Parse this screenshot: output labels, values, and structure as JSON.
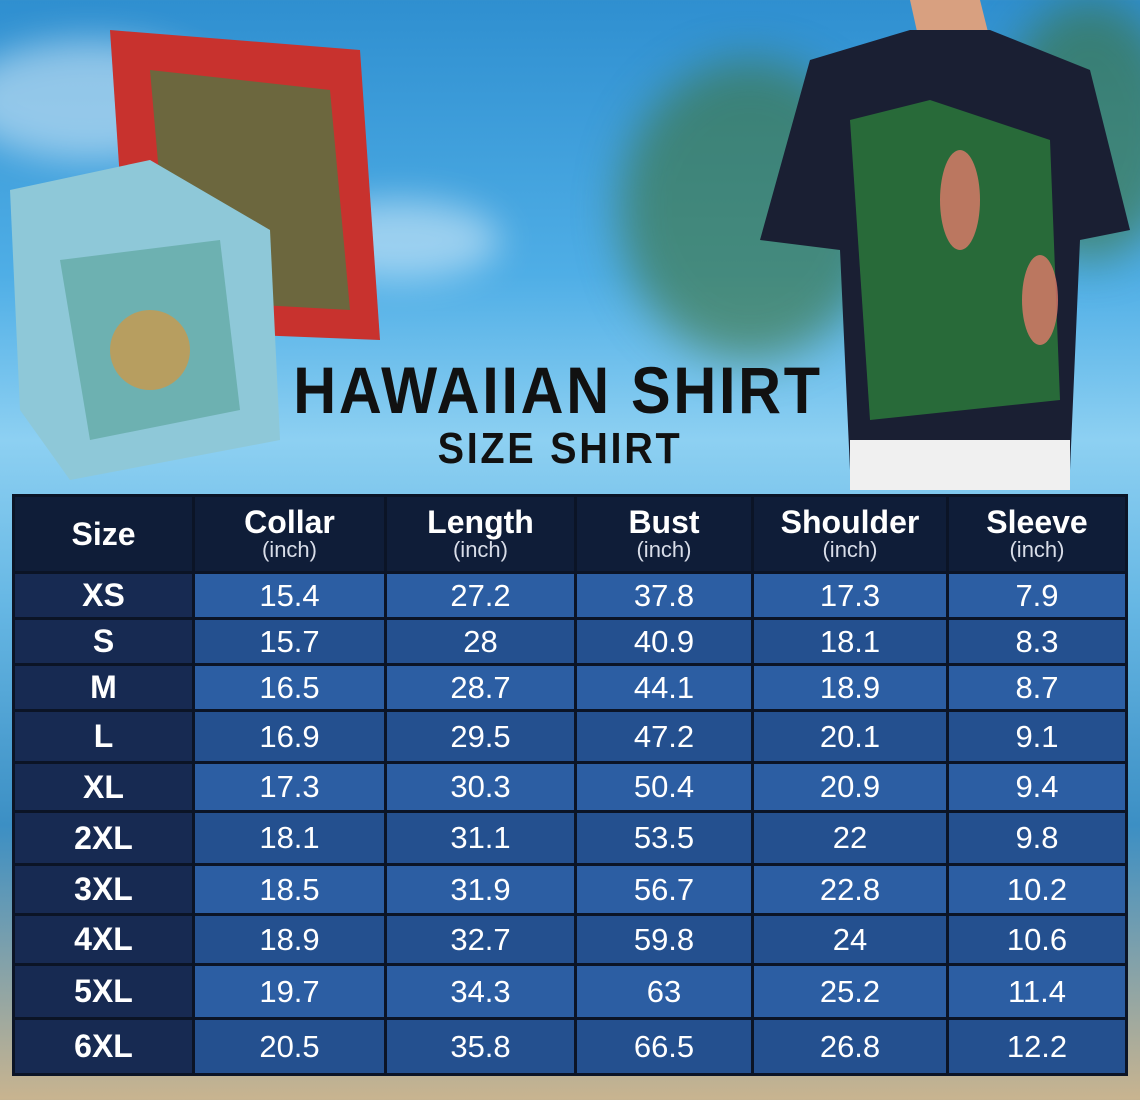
{
  "title": "HAWAIIAN SHIRT",
  "subtitle": "SIZE SHIRT",
  "colors": {
    "header_bg": "#0f1d38",
    "size_col_bg": "#172a52",
    "cell_bg": "#2c5ea3"
  },
  "table": {
    "headers": [
      {
        "label": "Size",
        "unit": ""
      },
      {
        "label": "Collar",
        "unit": "(inch)"
      },
      {
        "label": "Length",
        "unit": "(inch)"
      },
      {
        "label": "Bust",
        "unit": "(inch)"
      },
      {
        "label": "Shoulder",
        "unit": "(inch)"
      },
      {
        "label": "Sleeve",
        "unit": "(inch)"
      }
    ],
    "rows": [
      [
        "XS",
        "15.4",
        "27.2",
        "37.8",
        "17.3",
        "7.9"
      ],
      [
        "S",
        "15.7",
        "28",
        "40.9",
        "18.1",
        "8.3"
      ],
      [
        "M",
        "16.5",
        "28.7",
        "44.1",
        "18.9",
        "8.7"
      ],
      [
        "L",
        "16.9",
        "29.5",
        "47.2",
        "20.1",
        "9.1"
      ],
      [
        "XL",
        "17.3",
        "30.3",
        "50.4",
        "20.9",
        "9.4"
      ],
      [
        "2XL",
        "18.1",
        "31.1",
        "53.5",
        "22",
        "9.8"
      ],
      [
        "3XL",
        "18.5",
        "31.9",
        "56.7",
        "22.8",
        "10.2"
      ],
      [
        "4XL",
        "18.9",
        "32.7",
        "59.8",
        "24",
        "10.6"
      ],
      [
        "5XL",
        "19.7",
        "34.3",
        "63",
        "25.2",
        "11.4"
      ],
      [
        "6XL",
        "20.5",
        "35.8",
        "66.5",
        "26.8",
        "12.2"
      ]
    ]
  }
}
